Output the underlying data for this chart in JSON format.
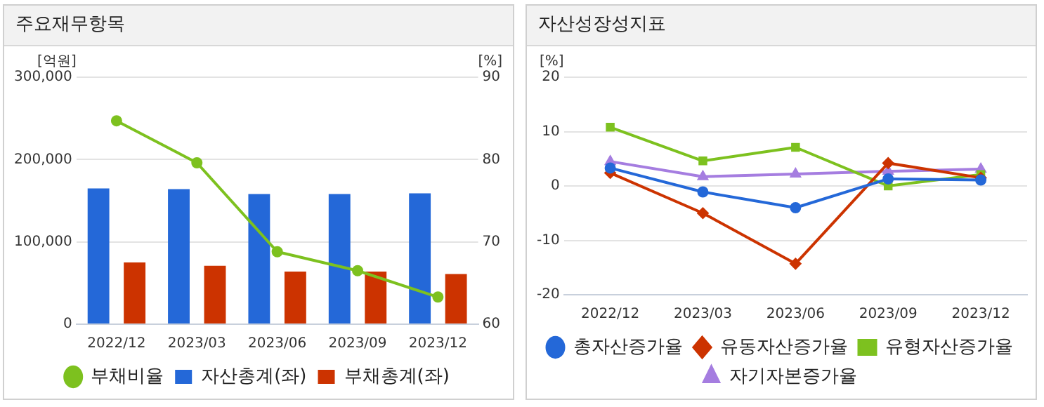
{
  "chart_data": [
    {
      "type": "bar",
      "title": "주요재무항목",
      "ylabel": "[억원]",
      "y2label": "[%]",
      "categories": [
        "2022/12",
        "2023/03",
        "2023/06",
        "2023/09",
        "2023/12"
      ],
      "series": [
        {
          "name": "자산총계(좌)",
          "color": "#2468d8",
          "values": [
            165000,
            164000,
            158000,
            158000,
            159000
          ]
        },
        {
          "name": "부채총계(좌)",
          "color": "#cc3300",
          "values": [
            75000,
            71000,
            64000,
            64000,
            61000
          ]
        },
        {
          "name": "부채비율",
          "type": "line",
          "axis": "y2",
          "marker": "circle",
          "color": "#7dc11f",
          "values": [
            84.7,
            79.6,
            68.8,
            66.5,
            63.3
          ]
        }
      ],
      "ylim": [
        0,
        300000
      ],
      "yticks": [
        0,
        {
          "value": 100000,
          "label": "100,000"
        },
        {
          "value": 200000,
          "label": "200,000"
        },
        {
          "value": 300000,
          "label": "300,000"
        }
      ],
      "y2lim": [
        60,
        90
      ],
      "y2ticks": [
        60,
        70,
        80,
        90
      ],
      "grid": "y",
      "legend": "bottom"
    },
    {
      "type": "line",
      "title": "자산성장성지표",
      "ylabel": "[%]",
      "categories": [
        "2022/12",
        "2023/03",
        "2023/06",
        "2023/09",
        "2023/12"
      ],
      "series": [
        {
          "name": "총자산증가율",
          "marker": "circle",
          "color": "#2468d8",
          "values": [
            3.3,
            -1.1,
            -4.0,
            1.3,
            1.1
          ]
        },
        {
          "name": "유동자산증가율",
          "marker": "diamond",
          "color": "#cc3300",
          "values": [
            2.4,
            -5.0,
            -14.3,
            4.2,
            1.5
          ]
        },
        {
          "name": "유형자산증가율",
          "marker": "square",
          "color": "#7dc11f",
          "values": [
            10.8,
            4.6,
            7.1,
            0.0,
            2.1
          ]
        },
        {
          "name": "자기자본증가율",
          "marker": "triangle",
          "color": "#a57de0",
          "values": [
            4.5,
            1.7,
            2.2,
            2.7,
            3.1
          ]
        }
      ],
      "ylim": [
        -20,
        20
      ],
      "yticks": [
        -20,
        -10,
        0,
        10,
        20
      ],
      "grid": "y",
      "legend": "bottom"
    }
  ]
}
